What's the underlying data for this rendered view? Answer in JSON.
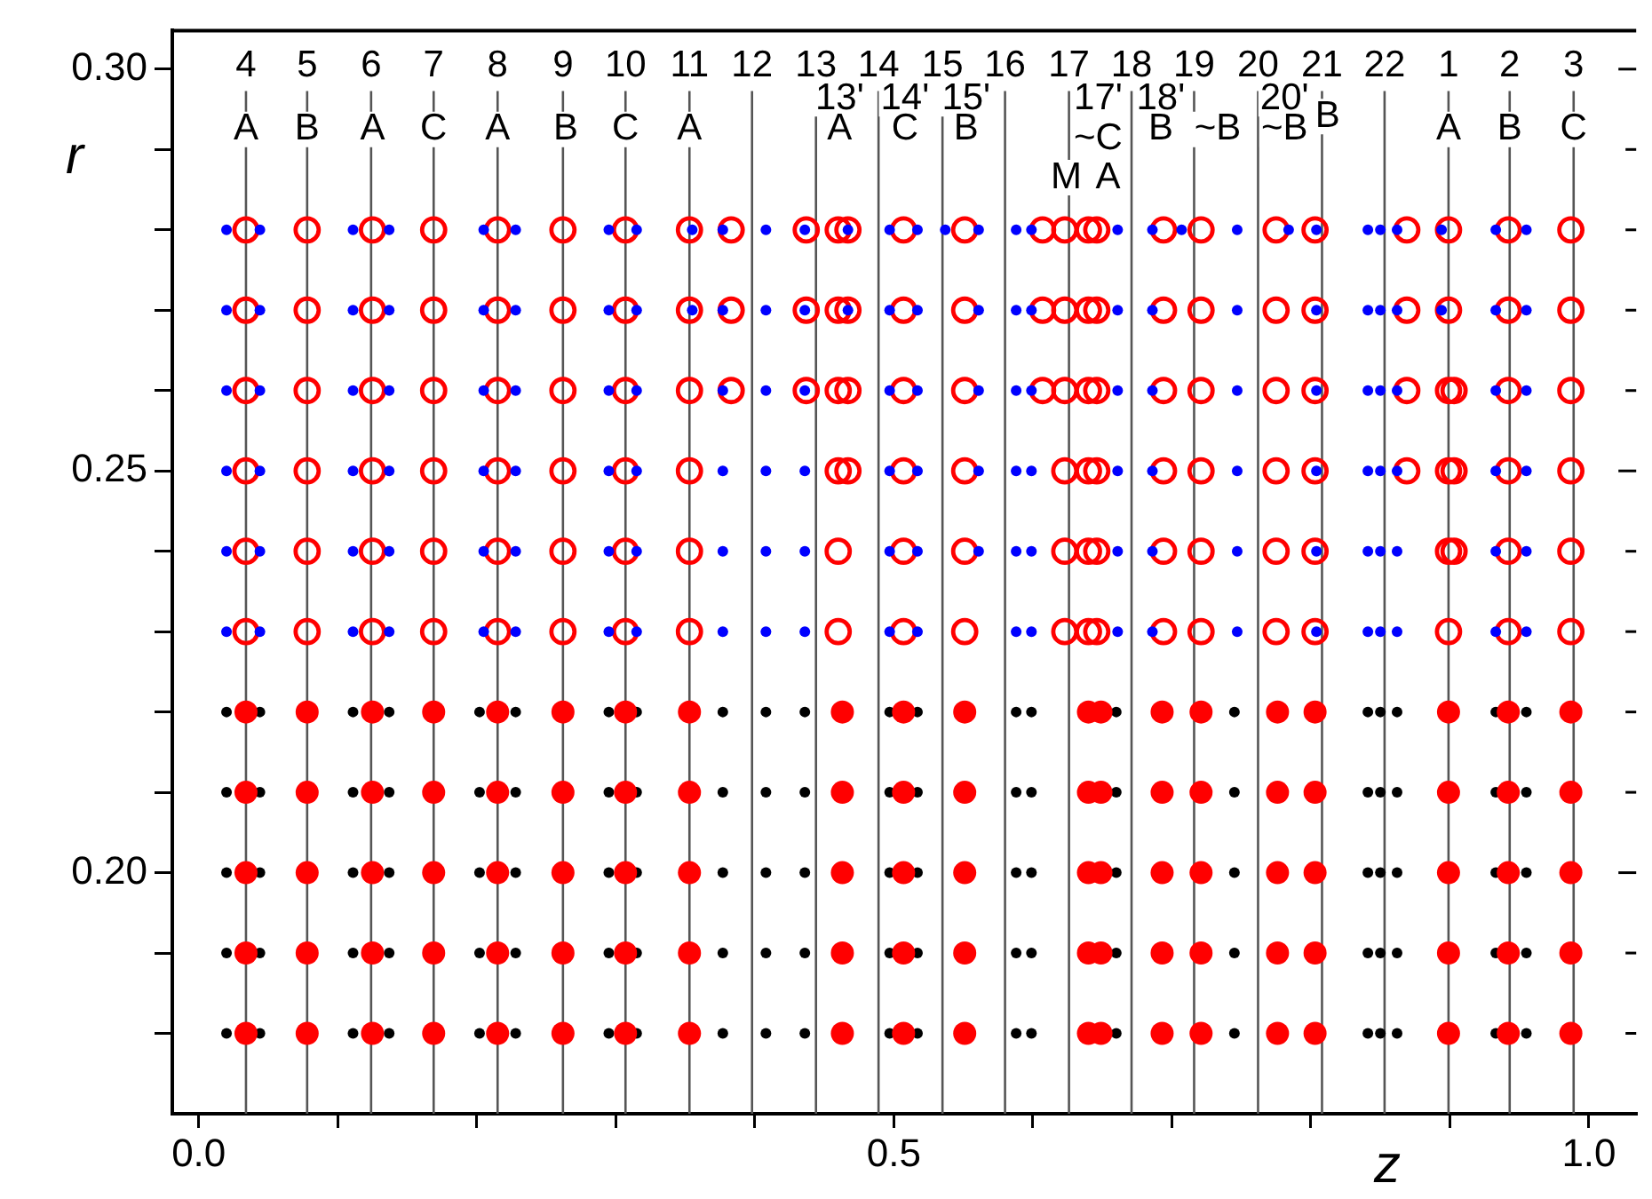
{
  "chart_data": {
    "type": "scatter",
    "xlabel": "z",
    "ylabel": "r",
    "xlim": [
      -0.019,
      1.034
    ],
    "ylim": [
      0.17,
      0.3048
    ],
    "xticks": [
      {
        "value": 0,
        "label": "0.0"
      },
      {
        "value": 0.1,
        "label": null
      },
      {
        "value": 0.2,
        "label": null
      },
      {
        "value": 0.3,
        "label": null
      },
      {
        "value": 0.4,
        "label": null
      },
      0.5,
      {
        "value": 0.6,
        "label": null
      },
      {
        "value": 0.7,
        "label": null
      },
      {
        "value": 0.8,
        "label": null
      },
      {
        "value": 0.9,
        "label": null
      },
      {
        "value": 1,
        "label": "1.0"
      }
    ],
    "yticks": [
      {
        "value": 0.18,
        "label": null
      },
      {
        "value": 0.19,
        "label": null
      },
      {
        "value": 0.2,
        "label": "0.20"
      },
      {
        "value": 0.21,
        "label": null
      },
      {
        "value": 0.22,
        "label": null
      },
      {
        "value": 0.23,
        "label": null
      },
      {
        "value": 0.24,
        "label": null
      },
      {
        "value": 0.25,
        "label": "0.25"
      },
      {
        "value": 0.26,
        "label": null
      },
      {
        "value": 0.27,
        "label": null
      },
      {
        "value": 0.28,
        "label": null
      },
      {
        "value": 0.29,
        "label": null
      },
      {
        "value": 0.3,
        "label": "0.30"
      }
    ],
    "grid": false,
    "legend": false,
    "marker": "circle",
    "series": [
      {
        "color": "#000000",
        "x": [
          0.02,
          0.044,
          0.111,
          0.137,
          0.202,
          0.228,
          0.295,
          0.315,
          0.377,
          0.408,
          0.436,
          0.497,
          0.517,
          0.588,
          0.599,
          0.66,
          0.745,
          0.841,
          0.85,
          0.862,
          0.933,
          0.955
        ],
        "values": [
          0.22,
          0.22,
          0.22,
          0.22,
          0.22,
          0.22,
          0.22,
          0.22,
          0.22,
          0.22,
          0.22,
          0.22,
          0.22,
          0.22,
          0.22,
          0.22,
          0.22,
          0.22,
          0.22,
          0.22,
          0.22,
          0.22
        ]
      },
      {
        "color": "#000000",
        "x": [
          0.02,
          0.044,
          0.111,
          0.137,
          0.202,
          0.228,
          0.295,
          0.315,
          0.377,
          0.408,
          0.436,
          0.497,
          0.517,
          0.588,
          0.599,
          0.66,
          0.745,
          0.841,
          0.85,
          0.862,
          0.933,
          0.955
        ],
        "values": [
          0.21,
          0.21,
          0.21,
          0.21,
          0.21,
          0.21,
          0.21,
          0.21,
          0.21,
          0.21,
          0.21,
          0.21,
          0.21,
          0.21,
          0.21,
          0.21,
          0.21,
          0.21,
          0.21,
          0.21,
          0.21,
          0.21
        ]
      },
      {
        "color": "#000000",
        "x": [
          0.02,
          0.044,
          0.111,
          0.137,
          0.202,
          0.228,
          0.295,
          0.315,
          0.377,
          0.408,
          0.436,
          0.497,
          0.517,
          0.588,
          0.599,
          0.66,
          0.745,
          0.841,
          0.85,
          0.862,
          0.933,
          0.955
        ],
        "values": [
          0.2,
          0.2,
          0.2,
          0.2,
          0.2,
          0.2,
          0.2,
          0.2,
          0.2,
          0.2,
          0.2,
          0.2,
          0.2,
          0.2,
          0.2,
          0.2,
          0.2,
          0.2,
          0.2,
          0.2,
          0.2,
          0.2
        ]
      },
      {
        "color": "#000000",
        "x": [
          0.02,
          0.044,
          0.111,
          0.137,
          0.202,
          0.228,
          0.295,
          0.315,
          0.377,
          0.408,
          0.436,
          0.497,
          0.517,
          0.588,
          0.599,
          0.66,
          0.745,
          0.841,
          0.85,
          0.862,
          0.933,
          0.955
        ],
        "values": [
          0.19,
          0.19,
          0.19,
          0.19,
          0.19,
          0.19,
          0.19,
          0.19,
          0.19,
          0.19,
          0.19,
          0.19,
          0.19,
          0.19,
          0.19,
          0.19,
          0.19,
          0.19,
          0.19,
          0.19,
          0.19,
          0.19
        ]
      },
      {
        "color": "#000000",
        "x": [
          0.02,
          0.044,
          0.111,
          0.137,
          0.202,
          0.228,
          0.295,
          0.315,
          0.377,
          0.408,
          0.436,
          0.497,
          0.517,
          0.588,
          0.599,
          0.66,
          0.745,
          0.841,
          0.85,
          0.862,
          0.933,
          0.955
        ],
        "values": [
          0.18,
          0.18,
          0.18,
          0.18,
          0.18,
          0.18,
          0.18,
          0.18,
          0.18,
          0.18,
          0.18,
          0.18,
          0.18,
          0.18,
          0.18,
          0.18,
          0.18,
          0.18,
          0.18,
          0.18,
          0.18,
          0.18
        ]
      },
      {
        "color": "#ff0000",
        "x": [
          0.034,
          0.078,
          0.125,
          0.169,
          0.215,
          0.262,
          0.307,
          0.353,
          0.463,
          0.507,
          0.551,
          0.64,
          0.649,
          0.693,
          0.721,
          0.776,
          0.803,
          0.899,
          0.942,
          0.987
        ],
        "values": [
          0.22,
          0.22,
          0.22,
          0.22,
          0.22,
          0.22,
          0.22,
          0.22,
          0.22,
          0.22,
          0.22,
          0.22,
          0.22,
          0.22,
          0.22,
          0.22,
          0.22,
          0.22,
          0.22,
          0.22
        ]
      },
      {
        "color": "#ff0000",
        "x": [
          0.034,
          0.078,
          0.125,
          0.169,
          0.215,
          0.262,
          0.307,
          0.353,
          0.463,
          0.507,
          0.551,
          0.64,
          0.649,
          0.693,
          0.721,
          0.776,
          0.803,
          0.899,
          0.942,
          0.987
        ],
        "values": [
          0.21,
          0.21,
          0.21,
          0.21,
          0.21,
          0.21,
          0.21,
          0.21,
          0.21,
          0.21,
          0.21,
          0.21,
          0.21,
          0.21,
          0.21,
          0.21,
          0.21,
          0.21,
          0.21,
          0.21
        ]
      },
      {
        "color": "#ff0000",
        "x": [
          0.034,
          0.078,
          0.125,
          0.169,
          0.215,
          0.262,
          0.307,
          0.353,
          0.463,
          0.507,
          0.551,
          0.64,
          0.649,
          0.693,
          0.721,
          0.776,
          0.803,
          0.899,
          0.942,
          0.987
        ],
        "values": [
          0.2,
          0.2,
          0.2,
          0.2,
          0.2,
          0.2,
          0.2,
          0.2,
          0.2,
          0.2,
          0.2,
          0.2,
          0.2,
          0.2,
          0.2,
          0.2,
          0.2,
          0.2,
          0.2,
          0.2
        ]
      },
      {
        "color": "#ff0000",
        "x": [
          0.034,
          0.078,
          0.125,
          0.169,
          0.215,
          0.262,
          0.307,
          0.353,
          0.463,
          0.507,
          0.551,
          0.64,
          0.649,
          0.693,
          0.721,
          0.776,
          0.803,
          0.899,
          0.942,
          0.987
        ],
        "values": [
          0.19,
          0.19,
          0.19,
          0.19,
          0.19,
          0.19,
          0.19,
          0.19,
          0.19,
          0.19,
          0.19,
          0.19,
          0.19,
          0.19,
          0.19,
          0.19,
          0.19,
          0.19,
          0.19,
          0.19
        ]
      },
      {
        "color": "#ff0000",
        "x": [
          0.034,
          0.078,
          0.125,
          0.169,
          0.215,
          0.262,
          0.307,
          0.353,
          0.463,
          0.507,
          0.551,
          0.64,
          0.649,
          0.693,
          0.721,
          0.776,
          0.803,
          0.899,
          0.942,
          0.987
        ],
        "values": [
          0.18,
          0.18,
          0.18,
          0.18,
          0.18,
          0.18,
          0.18,
          0.18,
          0.18,
          0.18,
          0.18,
          0.18,
          0.18,
          0.18,
          0.18,
          0.18,
          0.18,
          0.18,
          0.18,
          0.18
        ]
      },
      {
        "color": "#ff0000",
        "x": [
          0.034,
          0.078,
          0.125,
          0.169,
          0.215,
          0.262,
          0.307,
          0.353,
          0.383,
          0.437,
          0.46,
          0.467,
          0.507,
          0.551,
          0.607,
          0.623,
          0.64,
          0.646,
          0.694,
          0.721,
          0.775,
          0.803,
          0.869,
          0.899,
          0.942,
          0.987
        ],
        "values": [
          0.28,
          0.28,
          0.28,
          0.28,
          0.28,
          0.28,
          0.28,
          0.28,
          0.28,
          0.28,
          0.28,
          0.28,
          0.28,
          0.28,
          0.28,
          0.28,
          0.28,
          0.28,
          0.28,
          0.28,
          0.28,
          0.28,
          0.28,
          0.28,
          0.28,
          0.28
        ]
      },
      {
        "color": "#ff0000",
        "x": [
          0.034,
          0.078,
          0.125,
          0.169,
          0.215,
          0.262,
          0.307,
          0.353,
          0.383,
          0.437,
          0.46,
          0.467,
          0.507,
          0.551,
          0.607,
          0.623,
          0.64,
          0.646,
          0.694,
          0.721,
          0.775,
          0.803,
          0.869,
          0.899,
          0.942,
          0.987
        ],
        "values": [
          0.27,
          0.27,
          0.27,
          0.27,
          0.27,
          0.27,
          0.27,
          0.27,
          0.27,
          0.27,
          0.27,
          0.27,
          0.27,
          0.27,
          0.27,
          0.27,
          0.27,
          0.27,
          0.27,
          0.27,
          0.27,
          0.27,
          0.27,
          0.27,
          0.27,
          0.27
        ]
      },
      {
        "color": "#ff0000",
        "x": [
          0.034,
          0.078,
          0.125,
          0.169,
          0.215,
          0.262,
          0.307,
          0.353,
          0.383,
          0.437,
          0.46,
          0.467,
          0.507,
          0.551,
          0.607,
          0.623,
          0.64,
          0.646,
          0.694,
          0.721,
          0.775,
          0.803,
          0.869,
          0.899,
          0.903,
          0.942,
          0.987
        ],
        "values": [
          0.26,
          0.26,
          0.26,
          0.26,
          0.26,
          0.26,
          0.26,
          0.26,
          0.26,
          0.26,
          0.26,
          0.26,
          0.26,
          0.26,
          0.26,
          0.26,
          0.26,
          0.26,
          0.26,
          0.26,
          0.26,
          0.26,
          0.26,
          0.26,
          0.26,
          0.26,
          0.26
        ]
      },
      {
        "color": "#ff0000",
        "x": [
          0.034,
          0.078,
          0.125,
          0.169,
          0.215,
          0.262,
          0.307,
          0.353,
          0.46,
          0.467,
          0.507,
          0.551,
          0.623,
          0.64,
          0.646,
          0.694,
          0.721,
          0.775,
          0.803,
          0.869,
          0.899,
          0.903,
          0.942,
          0.987
        ],
        "values": [
          0.25,
          0.25,
          0.25,
          0.25,
          0.25,
          0.25,
          0.25,
          0.25,
          0.25,
          0.25,
          0.25,
          0.25,
          0.25,
          0.25,
          0.25,
          0.25,
          0.25,
          0.25,
          0.25,
          0.25,
          0.25,
          0.25,
          0.25,
          0.25
        ]
      },
      {
        "color": "#ff0000",
        "x": [
          0.034,
          0.078,
          0.125,
          0.169,
          0.215,
          0.262,
          0.307,
          0.353,
          0.46,
          0.507,
          0.551,
          0.623,
          0.64,
          0.646,
          0.694,
          0.721,
          0.775,
          0.803,
          0.899,
          0.903,
          0.942,
          0.987
        ],
        "values": [
          0.24,
          0.24,
          0.24,
          0.24,
          0.24,
          0.24,
          0.24,
          0.24,
          0.24,
          0.24,
          0.24,
          0.24,
          0.24,
          0.24,
          0.24,
          0.24,
          0.24,
          0.24,
          0.24,
          0.24,
          0.24,
          0.24
        ]
      },
      {
        "color": "#ff0000",
        "x": [
          0.034,
          0.078,
          0.125,
          0.169,
          0.215,
          0.262,
          0.307,
          0.353,
          0.46,
          0.507,
          0.551,
          0.623,
          0.64,
          0.646,
          0.694,
          0.721,
          0.775,
          0.803,
          0.899,
          0.942,
          0.987
        ],
        "values": [
          0.23,
          0.23,
          0.23,
          0.23,
          0.23,
          0.23,
          0.23,
          0.23,
          0.23,
          0.23,
          0.23,
          0.23,
          0.23,
          0.23,
          0.23,
          0.23,
          0.23,
          0.23,
          0.23,
          0.23,
          0.23
        ]
      },
      {
        "color": "#0000ff",
        "x": [
          0.02,
          0.044,
          0.111,
          0.137,
          0.205,
          0.228,
          0.295,
          0.315,
          0.355,
          0.377,
          0.408,
          0.436,
          0.467,
          0.497,
          0.517,
          0.537,
          0.561,
          0.588,
          0.599,
          0.661,
          0.686,
          0.707,
          0.747,
          0.784,
          0.804,
          0.841,
          0.85,
          0.862,
          0.894,
          0.933,
          0.955
        ],
        "values": [
          0.28,
          0.28,
          0.28,
          0.28,
          0.28,
          0.28,
          0.28,
          0.28,
          0.28,
          0.28,
          0.28,
          0.28,
          0.28,
          0.28,
          0.28,
          0.28,
          0.28,
          0.28,
          0.28,
          0.28,
          0.28,
          0.28,
          0.28,
          0.28,
          0.28,
          0.28,
          0.28,
          0.28,
          0.28,
          0.28,
          0.28
        ]
      },
      {
        "color": "#0000ff",
        "x": [
          0.02,
          0.044,
          0.111,
          0.137,
          0.205,
          0.228,
          0.295,
          0.315,
          0.355,
          0.377,
          0.408,
          0.436,
          0.467,
          0.497,
          0.517,
          0.561,
          0.588,
          0.599,
          0.661,
          0.686,
          0.747,
          0.804,
          0.841,
          0.85,
          0.862,
          0.894,
          0.933,
          0.955
        ],
        "values": [
          0.27,
          0.27,
          0.27,
          0.27,
          0.27,
          0.27,
          0.27,
          0.27,
          0.27,
          0.27,
          0.27,
          0.27,
          0.27,
          0.27,
          0.27,
          0.27,
          0.27,
          0.27,
          0.27,
          0.27,
          0.27,
          0.27,
          0.27,
          0.27,
          0.27,
          0.27,
          0.27,
          0.27
        ]
      },
      {
        "color": "#0000ff",
        "x": [
          0.02,
          0.044,
          0.111,
          0.137,
          0.205,
          0.228,
          0.295,
          0.315,
          0.377,
          0.408,
          0.436,
          0.497,
          0.517,
          0.561,
          0.588,
          0.599,
          0.661,
          0.686,
          0.747,
          0.804,
          0.841,
          0.85,
          0.862,
          0.933,
          0.955
        ],
        "values": [
          0.26,
          0.26,
          0.26,
          0.26,
          0.26,
          0.26,
          0.26,
          0.26,
          0.26,
          0.26,
          0.26,
          0.26,
          0.26,
          0.26,
          0.26,
          0.26,
          0.26,
          0.26,
          0.26,
          0.26,
          0.26,
          0.26,
          0.26,
          0.26,
          0.26
        ]
      },
      {
        "color": "#0000ff",
        "x": [
          0.02,
          0.044,
          0.111,
          0.137,
          0.205,
          0.228,
          0.295,
          0.315,
          0.377,
          0.408,
          0.436,
          0.497,
          0.517,
          0.561,
          0.588,
          0.599,
          0.661,
          0.686,
          0.747,
          0.804,
          0.841,
          0.85,
          0.862,
          0.933,
          0.955
        ],
        "values": [
          0.25,
          0.25,
          0.25,
          0.25,
          0.25,
          0.25,
          0.25,
          0.25,
          0.25,
          0.25,
          0.25,
          0.25,
          0.25,
          0.25,
          0.25,
          0.25,
          0.25,
          0.25,
          0.25,
          0.25,
          0.25,
          0.25,
          0.25,
          0.25,
          0.25
        ]
      },
      {
        "color": "#0000ff",
        "x": [
          0.02,
          0.044,
          0.111,
          0.137,
          0.205,
          0.228,
          0.295,
          0.315,
          0.377,
          0.408,
          0.436,
          0.497,
          0.517,
          0.561,
          0.588,
          0.599,
          0.661,
          0.686,
          0.747,
          0.804,
          0.841,
          0.85,
          0.862,
          0.933,
          0.955
        ],
        "values": [
          0.24,
          0.24,
          0.24,
          0.24,
          0.24,
          0.24,
          0.24,
          0.24,
          0.24,
          0.24,
          0.24,
          0.24,
          0.24,
          0.24,
          0.24,
          0.24,
          0.24,
          0.24,
          0.24,
          0.24,
          0.24,
          0.24,
          0.24,
          0.24,
          0.24
        ]
      },
      {
        "color": "#0000ff",
        "x": [
          0.02,
          0.044,
          0.111,
          0.137,
          0.205,
          0.228,
          0.295,
          0.315,
          0.377,
          0.408,
          0.436,
          0.497,
          0.517,
          0.588,
          0.599,
          0.661,
          0.686,
          0.747,
          0.804,
          0.841,
          0.85,
          0.862,
          0.933,
          0.955
        ],
        "values": [
          0.23,
          0.23,
          0.23,
          0.23,
          0.23,
          0.23,
          0.23,
          0.23,
          0.23,
          0.23,
          0.23,
          0.23,
          0.23,
          0.23,
          0.23,
          0.23,
          0.23,
          0.23,
          0.23,
          0.23,
          0.23,
          0.23,
          0.23,
          0.23
        ]
      }
    ],
    "ref_lines": [
      {
        "axis": "x",
        "value": 0.034
      },
      {
        "axis": "x",
        "value": 0.078
      },
      {
        "axis": "x",
        "value": 0.124
      },
      {
        "axis": "x",
        "value": 0.169
      },
      {
        "axis": "x",
        "value": 0.215
      },
      {
        "axis": "x",
        "value": 0.262
      },
      {
        "axis": "x",
        "value": 0.307
      },
      {
        "axis": "x",
        "value": 0.353
      },
      {
        "axis": "x",
        "value": 0.398
      },
      {
        "axis": "x",
        "value": 0.444
      },
      {
        "axis": "x",
        "value": 0.489
      },
      {
        "axis": "x",
        "value": 0.535
      },
      {
        "axis": "x",
        "value": 0.58
      },
      {
        "axis": "x",
        "value": 0.626
      },
      {
        "axis": "x",
        "value": 0.671
      },
      {
        "axis": "x",
        "value": 0.716
      },
      {
        "axis": "x",
        "value": 0.762
      },
      {
        "axis": "x",
        "value": 0.808
      },
      {
        "axis": "x",
        "value": 0.853
      },
      {
        "axis": "x",
        "value": 0.899
      },
      {
        "axis": "x",
        "value": 0.943
      },
      {
        "axis": "x",
        "value": 0.989
      }
    ],
    "annotations": [
      {
        "text": "4",
        "x": 0.034,
        "y": 0.3004
      },
      {
        "text": "5",
        "x": 0.078,
        "y": 0.3004
      },
      {
        "text": "6",
        "x": 0.124,
        "y": 0.3004
      },
      {
        "text": "7",
        "x": 0.169,
        "y": 0.3004
      },
      {
        "text": "8",
        "x": 0.215,
        "y": 0.3004
      },
      {
        "text": "9",
        "x": 0.262,
        "y": 0.3004
      },
      {
        "text": "10",
        "x": 0.307,
        "y": 0.3004
      },
      {
        "text": "11",
        "x": 0.353,
        "y": 0.3004
      },
      {
        "text": "12",
        "x": 0.398,
        "y": 0.3004
      },
      {
        "text": "13",
        "x": 0.444,
        "y": 0.3004
      },
      {
        "text": "14",
        "x": 0.489,
        "y": 0.3004
      },
      {
        "text": "15",
        "x": 0.535,
        "y": 0.3004
      },
      {
        "text": "16",
        "x": 0.58,
        "y": 0.3004
      },
      {
        "text": "17",
        "x": 0.626,
        "y": 0.3004
      },
      {
        "text": "18",
        "x": 0.671,
        "y": 0.3004
      },
      {
        "text": "19",
        "x": 0.716,
        "y": 0.3004
      },
      {
        "text": "20",
        "x": 0.762,
        "y": 0.3004
      },
      {
        "text": "21",
        "x": 0.808,
        "y": 0.3004
      },
      {
        "text": "22",
        "x": 0.853,
        "y": 0.3004
      },
      {
        "text": "1",
        "x": 0.899,
        "y": 0.3004
      },
      {
        "text": "2",
        "x": 0.943,
        "y": 0.3004
      },
      {
        "text": "3",
        "x": 0.989,
        "y": 0.3004
      },
      {
        "text": "A",
        "x": 0.034,
        "y": 0.2925
      },
      {
        "text": "B",
        "x": 0.078,
        "y": 0.2925
      },
      {
        "text": "A",
        "x": 0.125,
        "y": 0.2925
      },
      {
        "text": "C",
        "x": 0.169,
        "y": 0.2925
      },
      {
        "text": "A",
        "x": 0.215,
        "y": 0.2925
      },
      {
        "text": "B",
        "x": 0.264,
        "y": 0.2925
      },
      {
        "text": "C",
        "x": 0.307,
        "y": 0.2925
      },
      {
        "text": "A",
        "x": 0.353,
        "y": 0.2925
      },
      {
        "text": "13'",
        "x": 0.461,
        "y": 0.2963
      },
      {
        "text": "A",
        "x": 0.461,
        "y": 0.2925
      },
      {
        "text": "14'",
        "x": 0.508,
        "y": 0.2963
      },
      {
        "text": "C",
        "x": 0.508,
        "y": 0.2925
      },
      {
        "text": "15'",
        "x": 0.552,
        "y": 0.2963
      },
      {
        "text": "B",
        "x": 0.552,
        "y": 0.2925
      },
      {
        "text": "17'",
        "x": 0.647,
        "y": 0.2963
      },
      {
        "text": "~C",
        "x": 0.647,
        "y": 0.2913
      },
      {
        "text": "M",
        "x": 0.624,
        "y": 0.2865
      },
      {
        "text": "A",
        "x": 0.654,
        "y": 0.2865
      },
      {
        "text": "18'",
        "x": 0.692,
        "y": 0.2963
      },
      {
        "text": "B",
        "x": 0.692,
        "y": 0.2925
      },
      {
        "text": "~B",
        "x": 0.733,
        "y": 0.2925
      },
      {
        "text": "20'",
        "x": 0.781,
        "y": 0.2963
      },
      {
        "text": "~B",
        "x": 0.781,
        "y": 0.2925
      },
      {
        "text": "B",
        "x": 0.812,
        "y": 0.2941
      },
      {
        "text": "A",
        "x": 0.899,
        "y": 0.2925
      },
      {
        "text": "B",
        "x": 0.943,
        "y": 0.2925
      },
      {
        "text": "C",
        "x": 0.989,
        "y": 0.2925
      }
    ]
  }
}
